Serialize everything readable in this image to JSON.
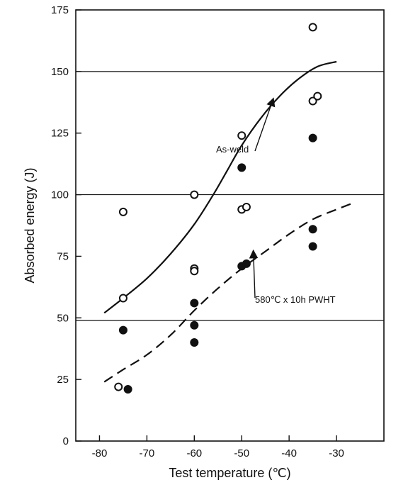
{
  "chart_data": {
    "type": "scatter",
    "title": "",
    "xlabel": "Test temperature (℃)",
    "ylabel": "Absorbed energy (J)",
    "xlim": [
      -85,
      -20
    ],
    "ylim": [
      0,
      175
    ],
    "xticks": [
      -80,
      -70,
      -60,
      -50,
      -40,
      -30
    ],
    "yticks": [
      0,
      25,
      50,
      75,
      100,
      125,
      150,
      175
    ],
    "hlines": [
      49,
      100,
      150
    ],
    "grid": false,
    "legend": "none",
    "series": [
      {
        "marker": "open-circle",
        "x": [
          -76,
          -75,
          -75,
          -60,
          -60,
          -60,
          -50,
          -50,
          -49,
          -35,
          -35,
          -34
        ],
        "y": [
          22,
          58,
          93,
          100,
          70,
          69,
          124,
          94,
          95,
          168,
          138,
          140
        ]
      },
      {
        "marker": "filled-circle",
        "x": [
          -75,
          -74,
          -60,
          -60,
          -60,
          -50,
          -50,
          -49,
          -35,
          -35,
          -35
        ],
        "y": [
          45,
          21,
          56,
          47,
          40,
          111,
          71,
          72,
          123,
          86,
          79
        ]
      }
    ],
    "curves": [
      {
        "name": "As-weld",
        "style": "solid",
        "x": [
          -79,
          -75,
          -70,
          -65,
          -60,
          -56,
          -53,
          -50,
          -46,
          -42,
          -38,
          -34,
          -30
        ],
        "y": [
          52,
          58,
          66,
          76,
          88,
          100,
          110,
          120,
          131,
          140,
          147,
          152,
          154
        ]
      },
      {
        "name": "580℃ x 10h PWHT",
        "style": "dashed",
        "x": [
          -79,
          -75,
          -70,
          -65,
          -60,
          -55,
          -50,
          -45,
          -40,
          -35,
          -30,
          -26
        ],
        "y": [
          24,
          29,
          35,
          43,
          53,
          62,
          70,
          77,
          84,
          90,
          94,
          97
        ]
      }
    ],
    "annotations": [
      {
        "text": "As-weld",
        "target_x": -43,
        "target_y": 138
      },
      {
        "text": "580℃ x 10h PWHT",
        "target_x": -48,
        "target_y": 78
      }
    ],
    "colors": {
      "ink": "#111111",
      "background": "#ffffff"
    }
  }
}
